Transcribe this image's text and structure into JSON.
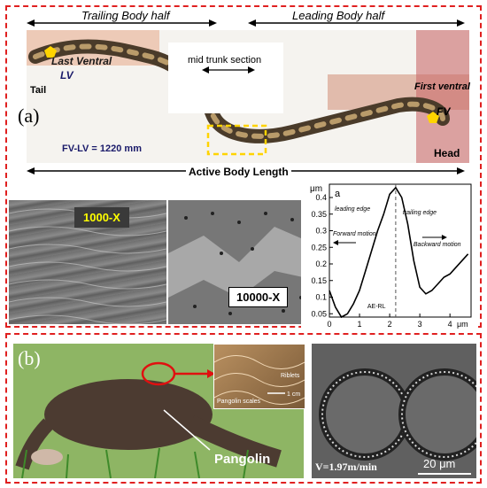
{
  "panel_a": {
    "label": "(a)",
    "trailing": "Trailing Body half",
    "leading": "Leading Body half",
    "mid": "mid trunk section",
    "last_ventral": "Last Ventral",
    "lv": "LV",
    "tail": "Tail",
    "first_ventral": "First ventral",
    "fv": "FV",
    "head": "Head",
    "fv_lv": "FV-LV = 1220 mm",
    "active_length": "Active Body Length",
    "sem_1000": "1000-X",
    "sem_10000": "10000-X"
  },
  "chart": {
    "panel_letter": "a",
    "unit_y": "μm",
    "unit_x": "μm",
    "leading_edge": "leading edge",
    "trailing_edge": "trailing edge",
    "forward": "Forward motion",
    "backward": "Backward motion",
    "ae_rl": "AE-RL",
    "y_ticks": [
      "0.05",
      "0.1",
      "0.15",
      "0.2",
      "0.25",
      "0.3",
      "0.35",
      "0.4"
    ],
    "x_ticks": [
      "0",
      "1",
      "2",
      "3",
      "4"
    ]
  },
  "chart_data": {
    "type": "line",
    "x": [
      0.0,
      0.2,
      0.4,
      0.6,
      0.8,
      1.0,
      1.2,
      1.4,
      1.6,
      1.8,
      2.0,
      2.2,
      2.4,
      2.6,
      2.8,
      3.0,
      3.2,
      3.4,
      3.6,
      3.8,
      4.0,
      4.2,
      4.6
    ],
    "y": [
      0.12,
      0.07,
      0.04,
      0.05,
      0.08,
      0.12,
      0.18,
      0.24,
      0.3,
      0.35,
      0.41,
      0.43,
      0.4,
      0.32,
      0.21,
      0.13,
      0.11,
      0.12,
      0.14,
      0.16,
      0.17,
      0.19,
      0.23
    ],
    "xlim": [
      0,
      4.7
    ],
    "ylim": [
      0.04,
      0.44
    ],
    "xlabel": "μm",
    "ylabel": "μm",
    "grid": false
  },
  "panel_b": {
    "label": "(b)",
    "riblets": "Riblets",
    "scale_bar": "1 cm",
    "pangolin_scales": "Pangolin scales",
    "pangolin": "Pangolin",
    "velocity": "V=1.97m/min",
    "scale_um": "20 μm"
  }
}
